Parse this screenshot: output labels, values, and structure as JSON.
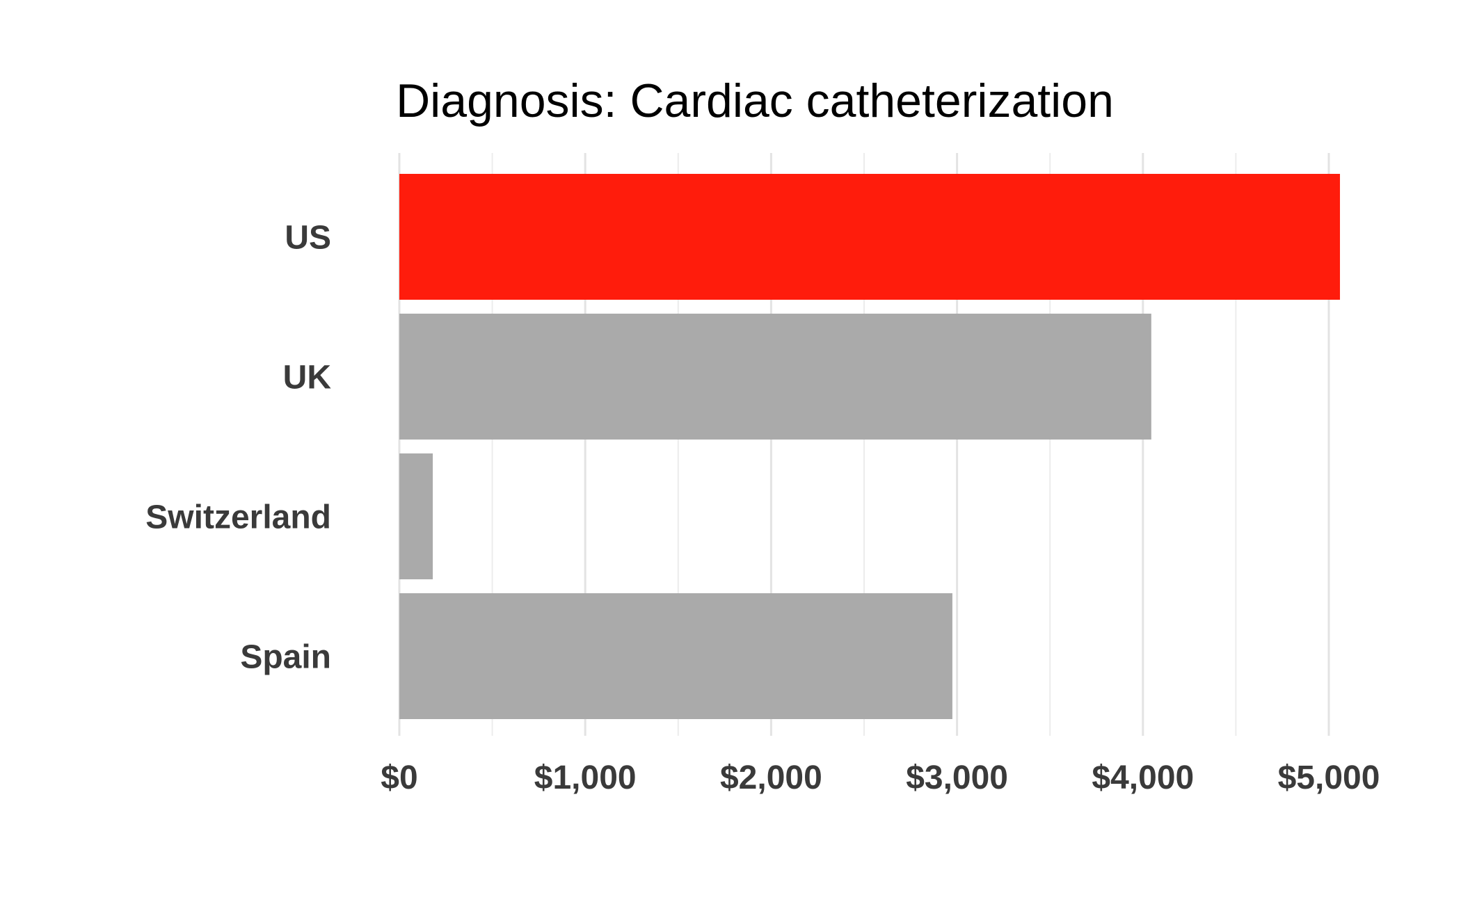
{
  "chart_data": {
    "type": "bar",
    "orientation": "horizontal",
    "title": "Diagnosis: Cardiac catheterization",
    "xlabel": "",
    "ylabel": "",
    "categories": [
      "US",
      "UK",
      "Switzerland",
      "Spain"
    ],
    "values": [
      5060,
      4045,
      180,
      2975
    ],
    "xlim": [
      0,
      5000
    ],
    "x_ticks": [
      0,
      1000,
      2000,
      3000,
      4000,
      5000
    ],
    "x_tick_labels": [
      "$0",
      "$1,000",
      "$2,000",
      "$3,000",
      "$4,000",
      "$5,000"
    ],
    "grid": true,
    "legend": "none",
    "colors": {
      "highlight": "#ff1c0c",
      "default": "#aaaaaa"
    },
    "highlight_category": "US"
  }
}
